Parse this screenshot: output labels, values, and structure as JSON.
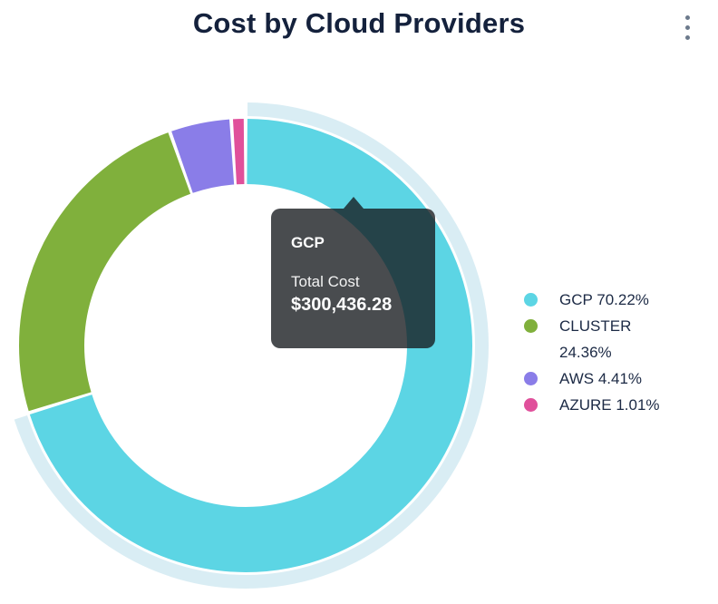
{
  "header": {
    "title": "Cost by Cloud Providers"
  },
  "menu": {
    "icon": "kebab-vertical-icon"
  },
  "chart_data": {
    "type": "pie",
    "variant": "donut",
    "title": "Cost by Cloud Providers",
    "unit": "%",
    "start_angle_deg": 0,
    "direction": "clockwise",
    "legend_position": "right",
    "highlight_color": "#d9edf4",
    "slices": [
      {
        "name": "GCP",
        "percent": 70.22,
        "color": "#5cd5e4",
        "highlighted": true,
        "total_cost": "$300,436.28"
      },
      {
        "name": "CLUSTER",
        "percent": 24.36,
        "color": "#80b03c",
        "highlighted": false
      },
      {
        "name": "AWS",
        "percent": 4.41,
        "color": "#8a7de8",
        "highlighted": false
      },
      {
        "name": "AZURE",
        "percent": 1.01,
        "color": "#e0509b",
        "highlighted": false
      }
    ]
  },
  "legend": {
    "items": [
      {
        "label": "GCP 70.22%",
        "color": "#5cd5e4"
      },
      {
        "label": "CLUSTER 24.36%",
        "color": "#80b03c"
      },
      {
        "label": "AWS 4.41%",
        "color": "#8a7de8"
      },
      {
        "label": "AZURE 1.01%",
        "color": "#e0509b"
      }
    ]
  },
  "tooltip": {
    "title": "GCP",
    "label": "Total Cost",
    "value": "$300,436.28"
  }
}
